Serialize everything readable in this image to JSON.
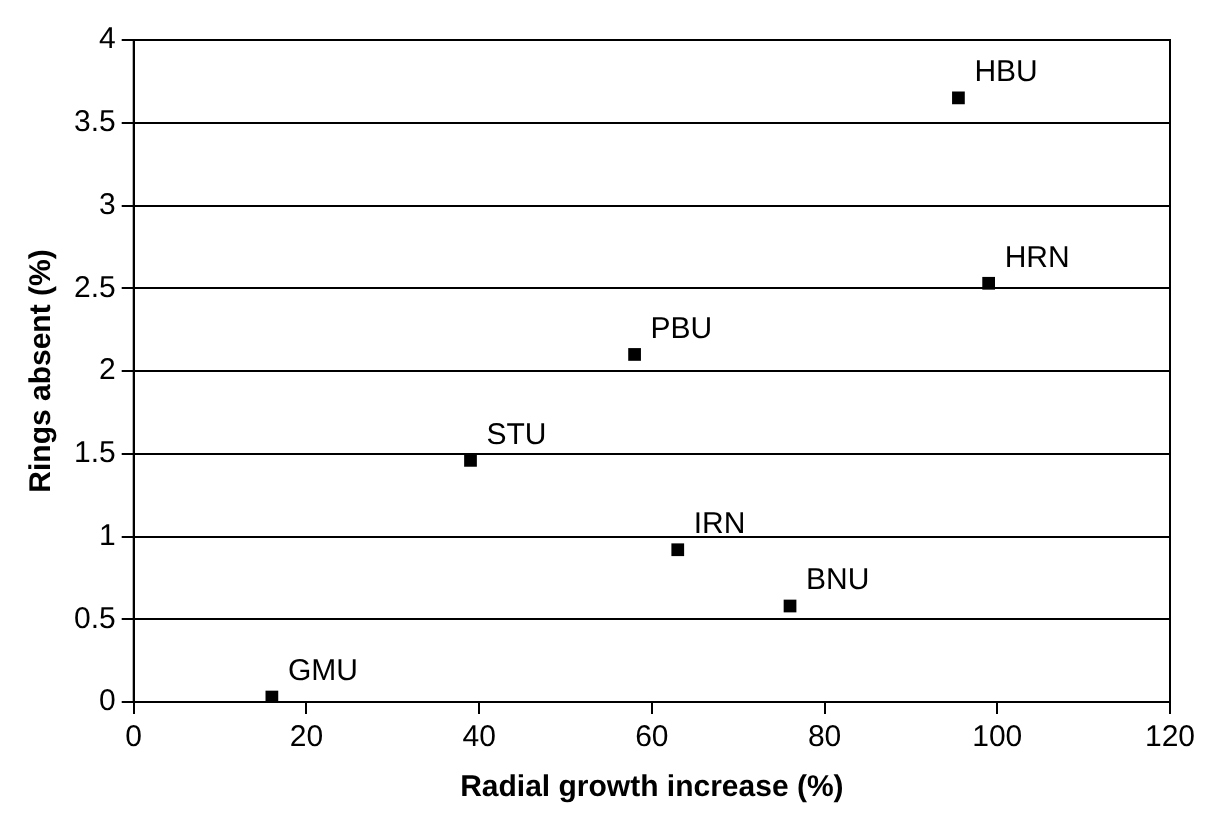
{
  "chart_data": {
    "type": "scatter",
    "xlabel": "Radial growth increase (%)",
    "ylabel": "Rings absent (%)",
    "x": [
      16,
      39,
      58,
      63,
      76,
      95.5,
      99
    ],
    "series": [
      {
        "color": "#000000",
        "values": [
          0.03,
          1.46,
          2.1,
          0.92,
          0.58,
          3.65,
          2.53
        ]
      }
    ],
    "xlim": [
      0,
      120
    ],
    "xticks": [
      0,
      20,
      40,
      60,
      80,
      100,
      120
    ],
    "ylim": [
      0,
      4
    ],
    "yticks": [
      0,
      0.5,
      1,
      1.5,
      2,
      2.5,
      3,
      3.5,
      4
    ],
    "grid": "y",
    "legend": false,
    "marker": "square",
    "annotations": [
      {
        "text": "GMU",
        "x": 16,
        "y": 0.03
      },
      {
        "text": "STU",
        "x": 39,
        "y": 1.46
      },
      {
        "text": "PBU",
        "x": 58,
        "y": 2.1
      },
      {
        "text": "IRN",
        "x": 63,
        "y": 0.92
      },
      {
        "text": "BNU",
        "x": 76,
        "y": 0.58
      },
      {
        "text": "HBU",
        "x": 95.5,
        "y": 3.65
      },
      {
        "text": "HRN",
        "x": 99,
        "y": 2.53
      }
    ]
  }
}
